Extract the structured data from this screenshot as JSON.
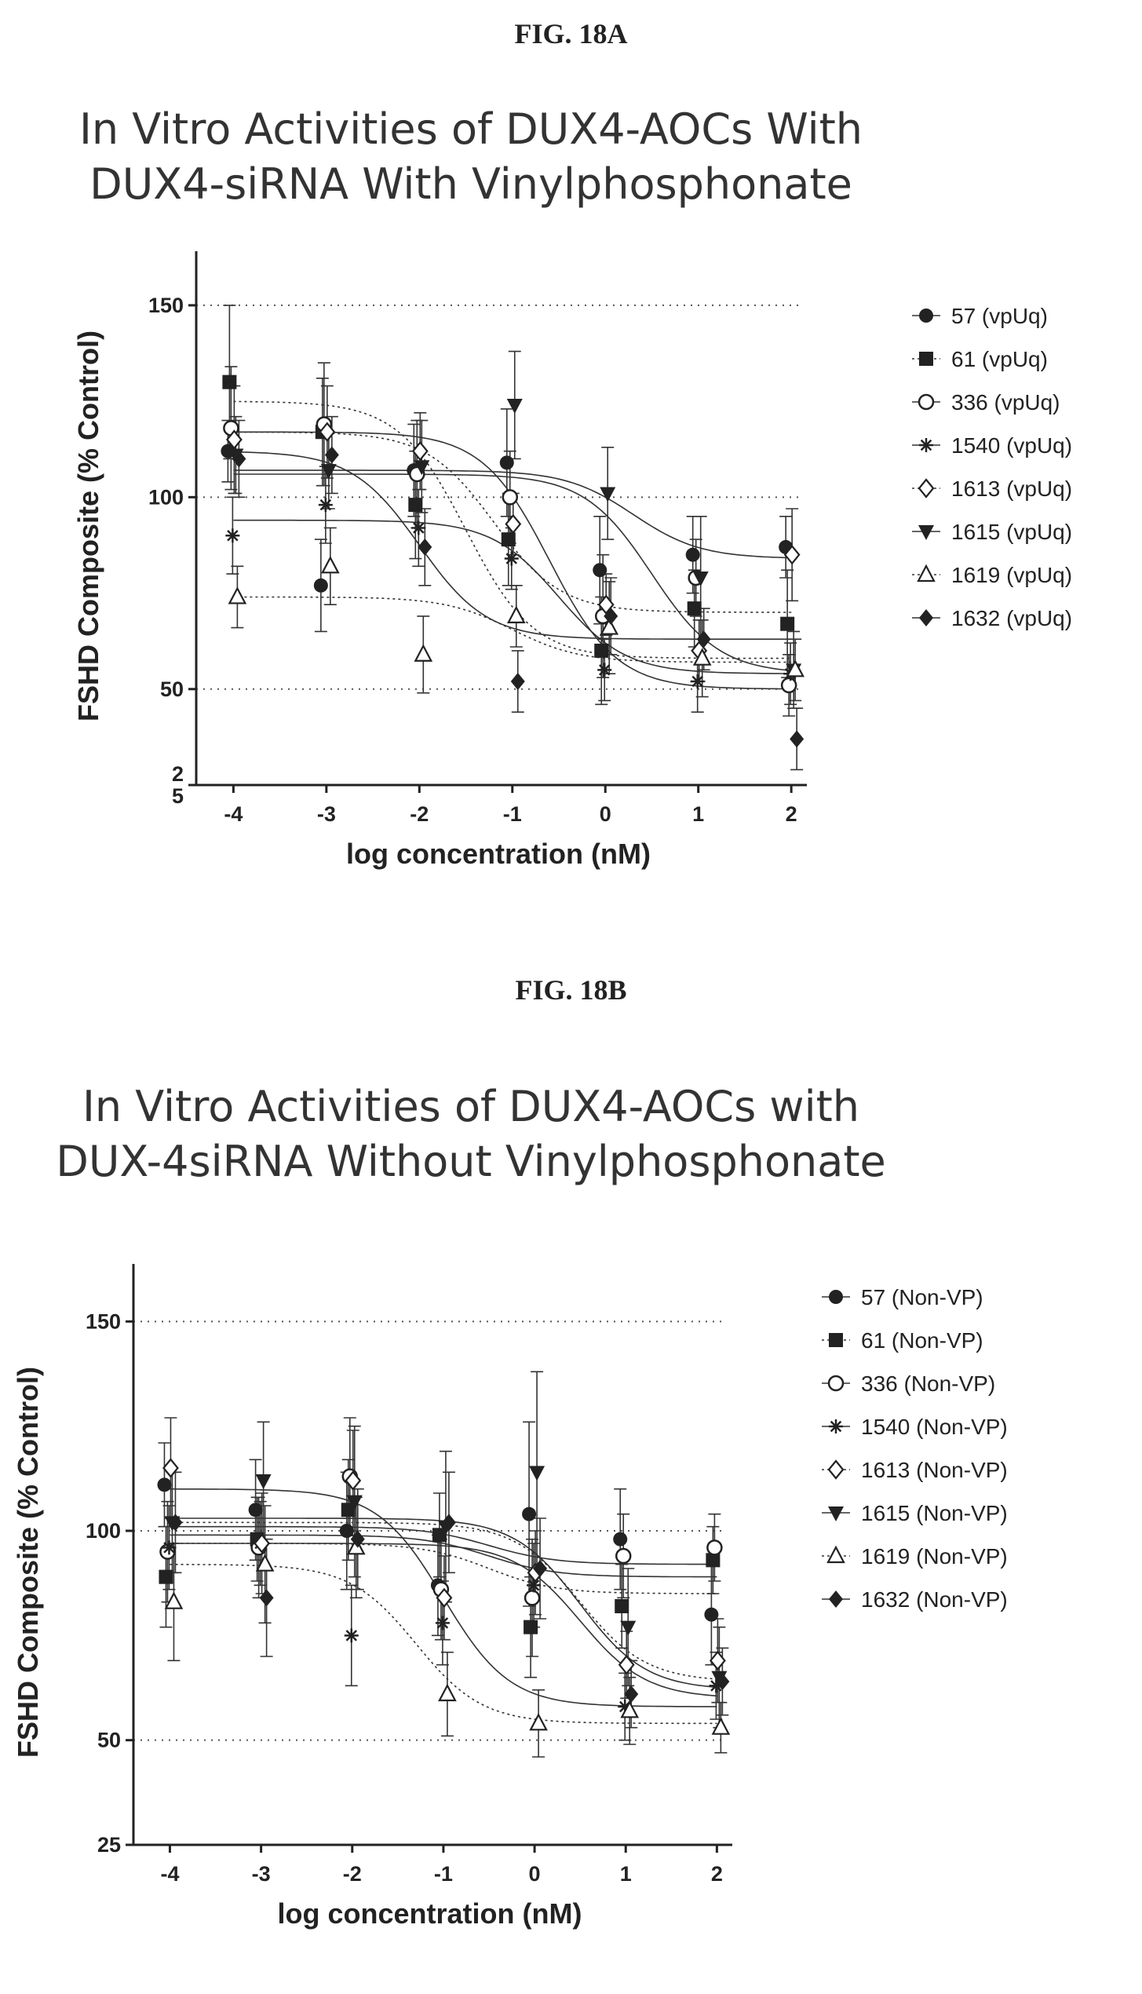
{
  "chart_data": [
    {
      "type": "scatter",
      "figure_label": "FIG. 18A",
      "title_lines": [
        "In Vitro Activities of DUX4-AOCs With",
        "DUX4-siRNA With Vinylphosphonate"
      ],
      "xlabel": "log concentration (nM)",
      "ylabel": "FSHD Composite (% Control)",
      "x": [
        -4,
        -3,
        -2,
        -1,
        0,
        1,
        2
      ],
      "x_ticks": [
        "-4",
        "-3",
        "-2",
        "-1",
        "0",
        "1",
        "2"
      ],
      "y_ticks": [
        {
          "value": 150,
          "label": "150"
        },
        {
          "value": 100,
          "label": "100"
        },
        {
          "value": 50,
          "label": "50"
        },
        {
          "value": 25,
          "label": "2\n5"
        }
      ],
      "xlim": [
        -4.4,
        2.1
      ],
      "ylim": [
        25,
        160
      ],
      "grid": "horizontal dotted at 50, 100, 150",
      "legend": "right",
      "series": [
        {
          "name": "57 (vpUq)",
          "marker": "circle-filled",
          "values": [
            112,
            77,
            107,
            109,
            81,
            85,
            87
          ],
          "err": [
            8,
            12,
            12,
            14,
            14,
            10,
            8
          ],
          "fit": {
            "top": 107,
            "bottom": 84,
            "logEC50": 0.3,
            "style": "solid"
          }
        },
        {
          "name": "61 (vpUq)",
          "marker": "square-filled",
          "values": [
            130,
            117,
            98,
            89,
            60,
            71,
            67
          ],
          "err": [
            20,
            14,
            14,
            12,
            14,
            10,
            14
          ],
          "fit": {
            "top": 125,
            "bottom": 58,
            "logEC50": -1.5,
            "style": "dotted"
          }
        },
        {
          "name": "336 (vpUq)",
          "marker": "circle-open",
          "values": [
            118,
            119,
            106,
            100,
            69,
            79,
            51
          ],
          "err": [
            16,
            16,
            14,
            12,
            16,
            10,
            8
          ],
          "fit": {
            "top": 117,
            "bottom": 50,
            "logEC50": -0.6,
            "style": "solid"
          }
        },
        {
          "name": "1540 (vpUq)",
          "marker": "asterisk",
          "values": [
            90,
            98,
            92,
            84,
            55,
            52,
            54
          ],
          "err": [
            10,
            10,
            10,
            8,
            8,
            8,
            8
          ],
          "fit": {
            "top": 94,
            "bottom": 54,
            "logEC50": -0.5,
            "style": "solid"
          }
        },
        {
          "name": "1613 (vpUq)",
          "marker": "diamond-open",
          "values": [
            115,
            117,
            112,
            93,
            72,
            60,
            85
          ],
          "err": [
            14,
            12,
            10,
            8,
            8,
            8,
            12
          ],
          "fit": {
            "top": 117,
            "bottom": 70,
            "logEC50": -1.2,
            "style": "dotted"
          }
        },
        {
          "name": "1615 (vpUq)",
          "marker": "triangle-down-filled",
          "values": [
            111,
            107,
            108,
            124,
            101,
            79,
            55
          ],
          "err": [
            10,
            10,
            12,
            14,
            12,
            16,
            10
          ],
          "fit": {
            "top": 106,
            "bottom": 54,
            "logEC50": 0.5,
            "style": "solid"
          }
        },
        {
          "name": "1619 (vpUq)",
          "marker": "triangle-up-open",
          "values": [
            74,
            82,
            59,
            69,
            66,
            58,
            55
          ],
          "err": [
            8,
            10,
            10,
            8,
            12,
            10,
            8
          ],
          "fit": {
            "top": 74,
            "bottom": 57,
            "logEC50": -1.0,
            "style": "dotted"
          }
        },
        {
          "name": "1632 (vpUq)",
          "marker": "diamond-filled",
          "values": [
            110,
            111,
            87,
            52,
            69,
            63,
            37
          ],
          "err": [
            10,
            10,
            10,
            8,
            10,
            8,
            8
          ],
          "fit": {
            "top": 112,
            "bottom": 63,
            "logEC50": -2.0,
            "style": "solid"
          }
        }
      ]
    },
    {
      "type": "scatter",
      "figure_label": "FIG. 18B",
      "title_lines": [
        "In Vitro Activities of DUX4-AOCs with",
        "DUX-4siRNA Without Vinylphosphonate"
      ],
      "xlabel": "log concentration (nM)",
      "ylabel": "FSHD Composite (% Control)",
      "x": [
        -4,
        -3,
        -2,
        -1,
        0,
        1,
        2
      ],
      "x_ticks": [
        "-4",
        "-3",
        "-2",
        "-1",
        "0",
        "1",
        "2"
      ],
      "y_ticks": [
        {
          "value": 150,
          "label": "150"
        },
        {
          "value": 100,
          "label": "100"
        },
        {
          "value": 50,
          "label": "50"
        },
        {
          "value": 25,
          "label": "25"
        }
      ],
      "xlim": [
        -4.4,
        2.1
      ],
      "ylim": [
        25,
        160
      ],
      "grid": "horizontal dotted at 50, 100, 150",
      "legend": "right",
      "series": [
        {
          "name": "57 (Non-VP)",
          "marker": "circle-filled",
          "values": [
            111,
            105,
            100,
            87,
            104,
            98,
            80
          ],
          "err": [
            10,
            12,
            14,
            12,
            22,
            12,
            12
          ],
          "fit": {
            "top": 101,
            "bottom": 92,
            "logEC50": -0.5,
            "style": "solid"
          }
        },
        {
          "name": "61 (Non-VP)",
          "marker": "square-filled",
          "values": [
            89,
            98,
            105,
            99,
            77,
            82,
            93
          ],
          "err": [
            12,
            10,
            12,
            10,
            12,
            10,
            8
          ],
          "fit": {
            "top": 97,
            "bottom": 85,
            "logEC50": -0.5,
            "style": "dotted"
          }
        },
        {
          "name": "336 (Non-VP)",
          "marker": "circle-open",
          "values": [
            95,
            96,
            113,
            86,
            84,
            94,
            96
          ],
          "err": [
            12,
            12,
            14,
            12,
            14,
            10,
            8
          ],
          "fit": {
            "top": 99,
            "bottom": 89,
            "logEC50": -0.5,
            "style": "solid"
          }
        },
        {
          "name": "1540 (Non-VP)",
          "marker": "asterisk",
          "values": [
            96,
            97,
            75,
            78,
            87,
            58,
            63
          ],
          "err": [
            10,
            10,
            12,
            10,
            10,
            8,
            8
          ],
          "fit": {
            "top": 97,
            "bottom": 60,
            "logEC50": 0.5,
            "style": "solid"
          }
        },
        {
          "name": "1613 (Non-VP)",
          "marker": "diamond-open",
          "values": [
            115,
            97,
            112,
            84,
            90,
            68,
            69
          ],
          "err": [
            12,
            12,
            12,
            10,
            10,
            8,
            10
          ],
          "fit": {
            "top": 102,
            "bottom": 64,
            "logEC50": 0.5,
            "style": "dotted"
          }
        },
        {
          "name": "1615 (Non-VP)",
          "marker": "triangle-down-filled",
          "values": [
            102,
            112,
            107,
            101,
            114,
            77,
            65
          ],
          "err": [
            12,
            14,
            18,
            18,
            24,
            14,
            12
          ],
          "fit": {
            "top": 103,
            "bottom": 62,
            "logEC50": 0.5,
            "style": "solid"
          }
        },
        {
          "name": "1619 (Non-VP)",
          "marker": "triangle-up-open",
          "values": [
            83,
            92,
            96,
            61,
            54,
            57,
            53
          ],
          "err": [
            14,
            14,
            12,
            10,
            8,
            8,
            6
          ],
          "fit": {
            "top": 92,
            "bottom": 54,
            "logEC50": -1.3,
            "style": "dotted"
          }
        },
        {
          "name": "1632 (Non-VP)",
          "marker": "diamond-filled",
          "values": [
            102,
            84,
            98,
            102,
            91,
            61,
            64
          ],
          "err": [
            12,
            14,
            12,
            12,
            12,
            8,
            8
          ],
          "fit": {
            "top": 110,
            "bottom": 58,
            "logEC50": -1.0,
            "style": "solid"
          }
        }
      ]
    }
  ]
}
